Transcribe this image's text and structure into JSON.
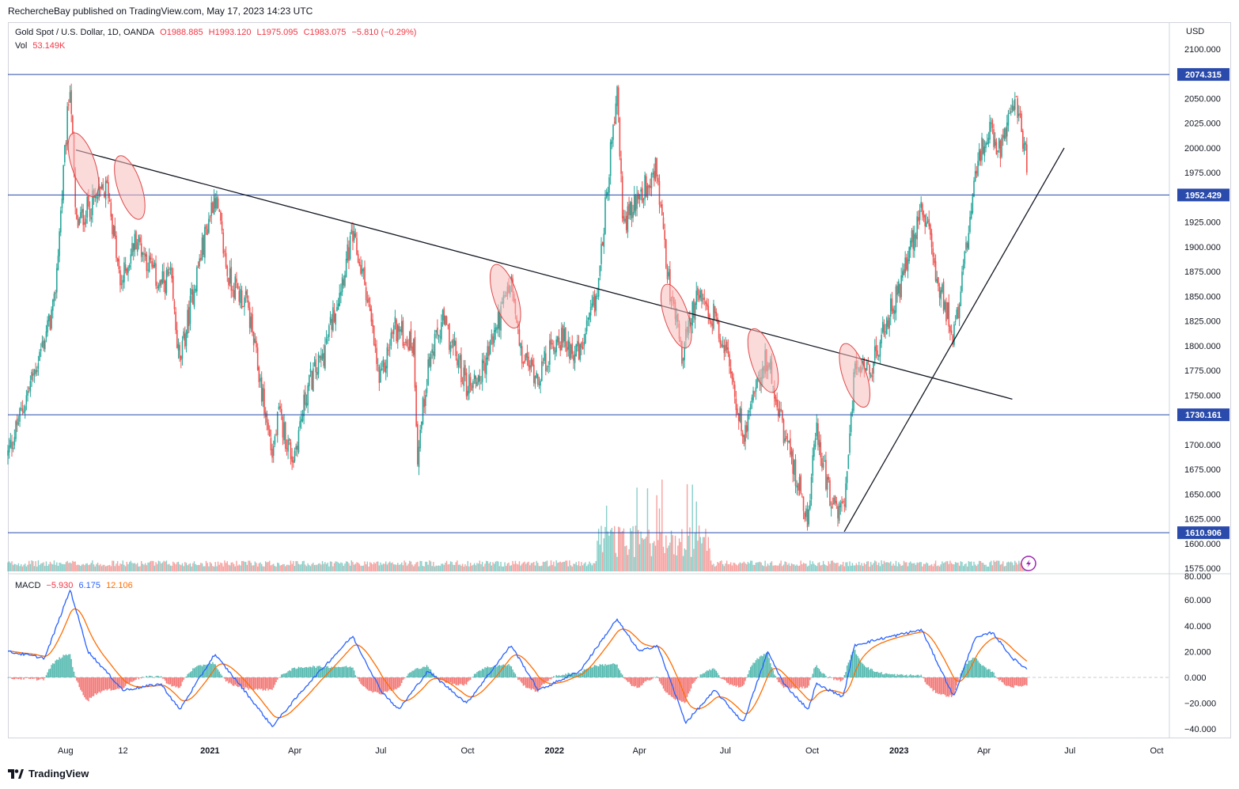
{
  "header": {
    "published": "RechercheBay published on TradingView.com, May 17, 2023 14:23 UTC"
  },
  "legend": {
    "symbol": "Gold Spot / U.S. Dollar, 1D, OANDA",
    "open": "O1988.885",
    "high": "H1993.120",
    "low": "L1975.095",
    "close": "C1983.075",
    "change": "−5.810 (−0.29%)",
    "vol_label": "Vol",
    "vol_value": "53.149K",
    "macd_label": "MACD",
    "macd_hist": "−5.930",
    "macd_line": "6.175",
    "macd_signal": "12.106"
  },
  "currency": "USD",
  "footer": {
    "brand": "TradingView"
  },
  "colors": {
    "up": "#26a69a",
    "down": "#ef5350",
    "hline": "#2a4bab",
    "macd": "#2962ff",
    "signal": "#ff6d00",
    "ellipse_fill": "#f7bcbc",
    "ellipse_stroke": "#e04848"
  },
  "chart_data": {
    "type": "candlestick",
    "price_axis": {
      "ticks": [
        "2100.000",
        "2050.000",
        "2025.000",
        "2000.000",
        "1975.000",
        "1925.000",
        "1900.000",
        "1875.000",
        "1850.000",
        "1825.000",
        "1800.000",
        "1775.000",
        "1750.000",
        "1700.000",
        "1675.000",
        "1650.000",
        "1625.000",
        "1600.000",
        "1575.000"
      ],
      "range": [
        1565,
        2115
      ]
    },
    "time_axis": {
      "labels": [
        "Aug",
        "12",
        "2021",
        "Apr",
        "Jul",
        "Oct",
        "2022",
        "Apr",
        "Jul",
        "Oct",
        "2023",
        "Apr",
        "Jul",
        "Oct"
      ]
    },
    "horizontal_levels": [
      "2074.315",
      "1952.429",
      "1730.161",
      "1610.906"
    ],
    "price_path": [
      [
        "2020-06-01",
        1690
      ],
      [
        "2020-07-01",
        1780
      ],
      [
        "2020-07-20",
        1840
      ],
      [
        "2020-08-06",
        2070
      ],
      [
        "2020-08-12",
        1920
      ],
      [
        "2020-08-25",
        1940
      ],
      [
        "2020-09-15",
        1960
      ],
      [
        "2020-09-28",
        1860
      ],
      [
        "2020-10-15",
        1910
      ],
      [
        "2020-11-09",
        1860
      ],
      [
        "2020-11-20",
        1870
      ],
      [
        "2020-11-30",
        1780
      ],
      [
        "2020-12-15",
        1860
      ],
      [
        "2021-01-06",
        1955
      ],
      [
        "2021-01-20",
        1870
      ],
      [
        "2021-02-10",
        1840
      ],
      [
        "2021-03-08",
        1690
      ],
      [
        "2021-03-15",
        1730
      ],
      [
        "2021-03-30",
        1685
      ],
      [
        "2021-04-15",
        1760
      ],
      [
        "2021-05-01",
        1790
      ],
      [
        "2021-06-01",
        1910
      ],
      [
        "2021-06-15",
        1860
      ],
      [
        "2021-06-30",
        1760
      ],
      [
        "2021-07-15",
        1820
      ],
      [
        "2021-08-05",
        1800
      ],
      [
        "2021-08-09",
        1690
      ],
      [
        "2021-08-20",
        1780
      ],
      [
        "2021-09-05",
        1825
      ],
      [
        "2021-09-30",
        1760
      ],
      [
        "2021-10-15",
        1770
      ],
      [
        "2021-11-16",
        1865
      ],
      [
        "2021-11-26",
        1790
      ],
      [
        "2021-12-15",
        1770
      ],
      [
        "2022-01-05",
        1810
      ],
      [
        "2022-01-28",
        1790
      ],
      [
        "2022-02-15",
        1850
      ],
      [
        "2022-03-08",
        2060
      ],
      [
        "2022-03-15",
        1920
      ],
      [
        "2022-04-18",
        1980
      ],
      [
        "2022-05-01",
        1870
      ],
      [
        "2022-05-16",
        1790
      ],
      [
        "2022-06-01",
        1850
      ],
      [
        "2022-06-20",
        1830
      ],
      [
        "2022-07-01",
        1800
      ],
      [
        "2022-07-20",
        1710
      ],
      [
        "2022-08-01",
        1760
      ],
      [
        "2022-08-15",
        1790
      ],
      [
        "2022-09-01",
        1710
      ],
      [
        "2022-09-27",
        1625
      ],
      [
        "2022-10-05",
        1720
      ],
      [
        "2022-10-21",
        1640
      ],
      [
        "2022-11-03",
        1630
      ],
      [
        "2022-11-15",
        1775
      ],
      [
        "2022-11-30",
        1770
      ],
      [
        "2022-12-13",
        1810
      ],
      [
        "2023-01-06",
        1870
      ],
      [
        "2023-01-25",
        1945
      ],
      [
        "2023-02-10",
        1870
      ],
      [
        "2023-02-28",
        1810
      ],
      [
        "2023-03-15",
        1910
      ],
      [
        "2023-03-22",
        1975
      ],
      [
        "2023-04-05",
        2020
      ],
      [
        "2023-04-18",
        2000
      ],
      [
        "2023-05-04",
        2050
      ],
      [
        "2023-05-17",
        1983
      ]
    ],
    "volume_spike_period": [
      "2022-02-15",
      "2022-06-15"
    ],
    "macd": {
      "line_path": [
        [
          "2020-06-01",
          20
        ],
        [
          "2020-07-10",
          15
        ],
        [
          "2020-08-06",
          68
        ],
        [
          "2020-08-25",
          20
        ],
        [
          "2020-10-01",
          -10
        ],
        [
          "2020-11-10",
          -5
        ],
        [
          "2020-11-30",
          -25
        ],
        [
          "2021-01-06",
          18
        ],
        [
          "2021-02-01",
          -5
        ],
        [
          "2021-03-08",
          -38
        ],
        [
          "2021-04-15",
          -5
        ],
        [
          "2021-06-01",
          32
        ],
        [
          "2021-07-01",
          -10
        ],
        [
          "2021-07-20",
          -25
        ],
        [
          "2021-08-20",
          5
        ],
        [
          "2021-09-30",
          -20
        ],
        [
          "2021-11-16",
          25
        ],
        [
          "2021-12-15",
          -10
        ],
        [
          "2022-01-28",
          5
        ],
        [
          "2022-03-08",
          45
        ],
        [
          "2022-04-01",
          20
        ],
        [
          "2022-04-20",
          25
        ],
        [
          "2022-05-20",
          -35
        ],
        [
          "2022-06-20",
          -10
        ],
        [
          "2022-07-20",
          -35
        ],
        [
          "2022-08-15",
          20
        ],
        [
          "2022-09-01",
          -5
        ],
        [
          "2022-09-27",
          -25
        ],
        [
          "2022-10-05",
          -5
        ],
        [
          "2022-11-03",
          -15
        ],
        [
          "2022-11-15",
          25
        ],
        [
          "2022-12-13",
          30
        ],
        [
          "2023-01-25",
          37
        ],
        [
          "2023-02-28",
          -15
        ],
        [
          "2023-03-22",
          30
        ],
        [
          "2023-04-10",
          35
        ],
        [
          "2023-05-01",
          15
        ],
        [
          "2023-05-17",
          6.175
        ]
      ],
      "axis_ticks": [
        "60.000",
        "40.000",
        "20.000",
        "0.000",
        "−20.000",
        "−40.000"
      ],
      "range": [
        -45,
        80
      ]
    },
    "annotations": {
      "descending_trendline": [
        [
          "2020-08-12",
          1998
        ],
        [
          "2023-05-01",
          1746
        ]
      ],
      "ascending_trendline": [
        [
          "2022-11-04",
          1612
        ],
        [
          "2023-06-25",
          2000
        ]
      ],
      "ellipses": [
        [
          "2020-08-20",
          1983
        ],
        [
          "2020-10-08",
          1960
        ],
        [
          "2021-11-10",
          1850
        ],
        [
          "2022-05-10",
          1830
        ],
        [
          "2022-08-10",
          1785
        ],
        [
          "2022-11-15",
          1770
        ]
      ]
    }
  }
}
